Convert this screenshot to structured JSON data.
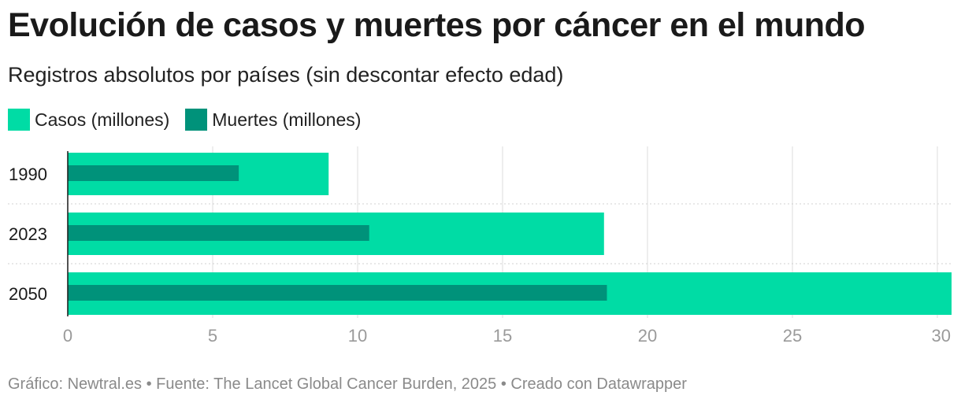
{
  "header": {
    "title": "Evolución de casos y muertes por cáncer en el mundo",
    "subtitle": "Registros absolutos por países (sin descontar efecto edad)"
  },
  "legend": {
    "items": [
      {
        "label": "Casos (millones)",
        "color": "#00dca5"
      },
      {
        "label": "Muertes (millones)",
        "color": "#00927a"
      }
    ]
  },
  "chart_data": {
    "type": "bar",
    "orientation": "horizontal",
    "categories": [
      "1990",
      "2023",
      "2050"
    ],
    "series": [
      {
        "name": "Casos (millones)",
        "values": [
          9.0,
          18.5,
          30.5
        ],
        "color": "#00dca5"
      },
      {
        "name": "Muertes (millones)",
        "values": [
          5.9,
          10.4,
          18.6
        ],
        "color": "#00927a"
      }
    ],
    "xlim": [
      0,
      30
    ],
    "xticks": [
      0,
      5,
      10,
      15,
      20,
      25,
      30
    ],
    "grid": true
  },
  "footer": {
    "text": "Gráfico: Newtral.es • Fuente: The Lancet Global Cancer Burden, 2025 • Creado con Datawrapper"
  }
}
